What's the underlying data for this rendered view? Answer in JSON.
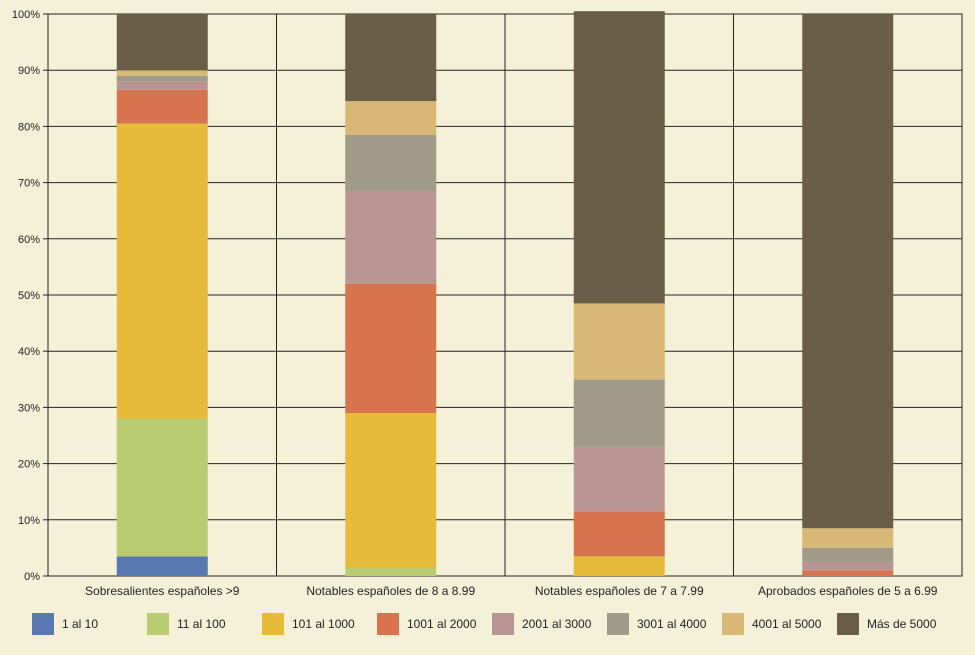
{
  "chart_data": {
    "type": "bar",
    "stacked": true,
    "title": "",
    "xlabel": "",
    "ylabel": "",
    "ylim": [
      0,
      100
    ],
    "y_ticks": [
      "0%",
      "10%",
      "20%",
      "30%",
      "40%",
      "50%",
      "60%",
      "70%",
      "80%",
      "90%",
      "100%"
    ],
    "grid": true,
    "legend_position": "bottom",
    "categories": [
      "Sobresalientes españoles >9",
      "Notables españoles de 8 a 8.99",
      "Notables españoles de 7 a 7.99",
      "Aprobados españoles de 5 a 6.99"
    ],
    "series": [
      {
        "name": "1 al 10",
        "color": "#5a78b0",
        "values": [
          3.5,
          0,
          0,
          0
        ]
      },
      {
        "name": "11 al 100",
        "color": "#b9cc72",
        "values": [
          24.5,
          1.5,
          0,
          0
        ]
      },
      {
        "name": "101 al 1000",
        "color": "#e6bb3a",
        "values": [
          52.5,
          27.5,
          3.5,
          0
        ]
      },
      {
        "name": "1001 al 2000",
        "color": "#d7734f",
        "values": [
          6,
          23,
          8,
          1
        ]
      },
      {
        "name": "2001 al 3000",
        "color": "#b99594",
        "values": [
          1.5,
          16.5,
          11.5,
          1.5
        ]
      },
      {
        "name": "3001 al 4000",
        "color": "#a29a88",
        "values": [
          1,
          10,
          12,
          2.5
        ]
      },
      {
        "name": "4001 al 5000",
        "color": "#d8b877",
        "values": [
          1,
          6,
          13.5,
          3.5
        ]
      },
      {
        "name": "Más de 5000",
        "color": "#6a5e46",
        "values": [
          10,
          15.5,
          52,
          91.5
        ]
      }
    ]
  }
}
